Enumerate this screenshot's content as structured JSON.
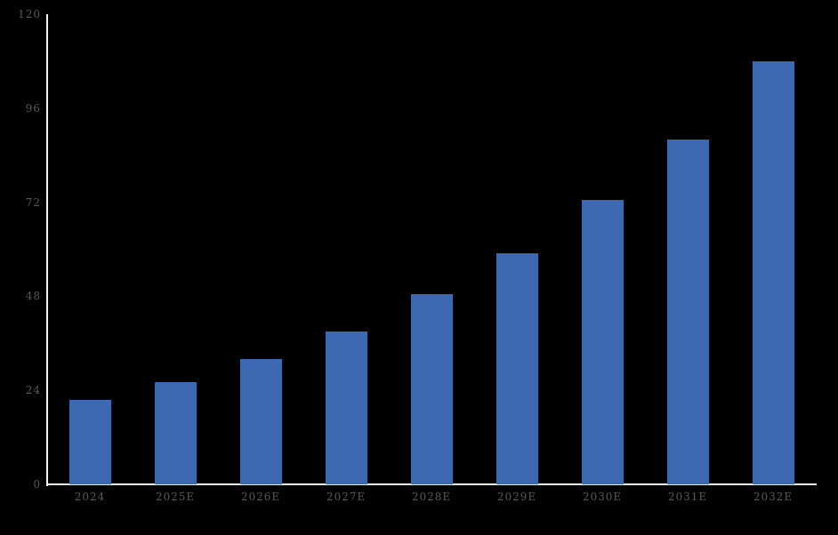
{
  "page": {
    "background_color": "#000000"
  },
  "chart_data": {
    "type": "bar",
    "title": "",
    "xlabel": "",
    "ylabel": "",
    "categories": [
      "2024",
      "2025E",
      "2026E",
      "2027E",
      "2028E",
      "2029E",
      "2030E",
      "2031E",
      "2032E"
    ],
    "values": [
      21.5,
      26,
      32,
      39,
      48.5,
      59,
      72.5,
      88,
      108
    ],
    "ylim": [
      0,
      120
    ],
    "yticks": [
      0,
      24,
      48,
      72,
      96,
      120
    ],
    "grid": false,
    "legend": false,
    "bar_color": "#3d68b2",
    "axis_color": "#f2f2f2",
    "label_color": "#595959"
  }
}
